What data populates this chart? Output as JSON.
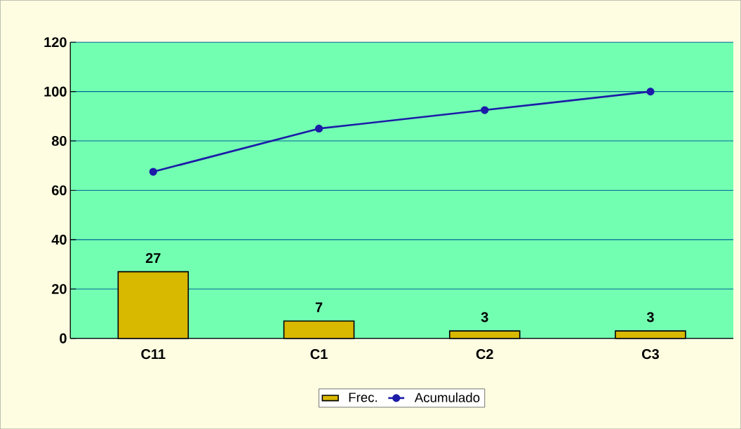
{
  "chart_data": {
    "type": "bar",
    "categories": [
      "C11",
      "C1",
      "C2",
      "C3"
    ],
    "series": [
      {
        "name": "Frec.",
        "color": "#d9b800",
        "values": [
          27,
          7,
          3,
          3
        ],
        "value_labels": [
          "27",
          "7",
          "3",
          "3"
        ]
      },
      {
        "name": "Acumulado",
        "type": "line",
        "color": "#1c1ca8",
        "values": [
          67.5,
          85,
          92.5,
          100
        ]
      }
    ],
    "ylim": [
      0,
      120
    ],
    "yticks": [
      0,
      20,
      40,
      60,
      80,
      100,
      120
    ],
    "grid": "y",
    "legend": "bottom",
    "marker": "circle"
  }
}
